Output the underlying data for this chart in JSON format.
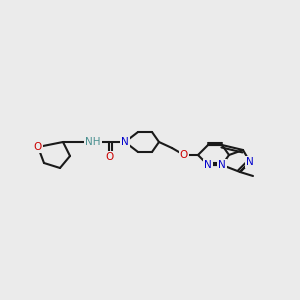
{
  "bg_color": "#ebebeb",
  "figsize": [
    3.0,
    3.0
  ],
  "dpi": 100,
  "bond_color": "#1a1a1a",
  "bond_width": 1.5,
  "atom_colors": {
    "N": "#0000cc",
    "O": "#cc0000",
    "H": "#4a9090",
    "C": "#1a1a1a"
  },
  "font_size": 7.5
}
